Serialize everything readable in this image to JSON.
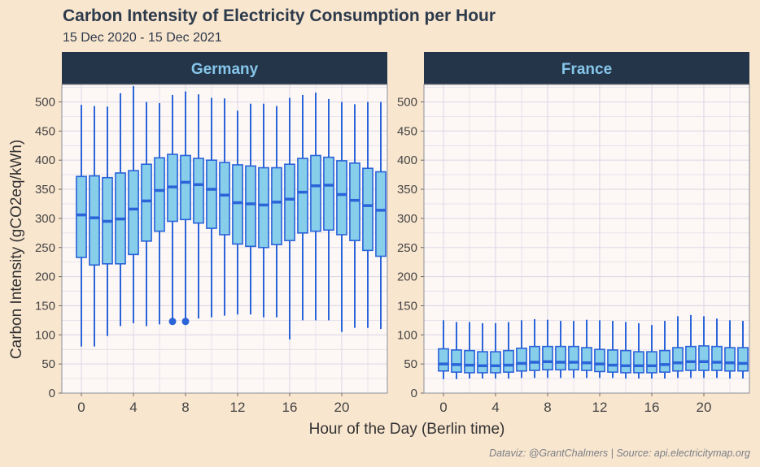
{
  "title": "Carbon Intensity of Electricity Consumption per Hour",
  "subtitle": "15 Dec 2020 - 15 Dec 2021",
  "caption": "Dataviz: @GrantChalmers | Source: api.electricitymap.org",
  "colors": {
    "background": "#f9e6cf",
    "panel": "#fdf8f6",
    "strip": "#253549",
    "strip_text": "#86c6ea",
    "box_fill": "#87ceeb",
    "box_line": "#2b63d9",
    "grid": "#dcd9e6"
  },
  "chart_data": {
    "type": "boxplot",
    "xlabel": "Hour of the Day (Berlin time)",
    "ylabel": "Carbon Intensity (gCO2eq/kWh)",
    "ylim": [
      0,
      530
    ],
    "xlim": [
      -1.5,
      23.5
    ],
    "y_ticks": [
      0,
      50,
      100,
      150,
      200,
      250,
      300,
      350,
      400,
      450,
      500
    ],
    "x_ticks": [
      0,
      4,
      8,
      12,
      16,
      20
    ],
    "grid": true,
    "panels": [
      {
        "name": "Germany",
        "hours": [
          0,
          1,
          2,
          3,
          4,
          5,
          6,
          7,
          8,
          9,
          10,
          11,
          12,
          13,
          14,
          15,
          16,
          17,
          18,
          19,
          20,
          21,
          22,
          23
        ],
        "lower_whisker": [
          80,
          80,
          98,
          115,
          120,
          115,
          118,
          122,
          125,
          128,
          130,
          133,
          135,
          135,
          130,
          130,
          92,
          125,
          125,
          125,
          105,
          112,
          112,
          110
        ],
        "q1": [
          233,
          220,
          222,
          222,
          238,
          261,
          278,
          295,
          298,
          292,
          283,
          272,
          256,
          252,
          250,
          255,
          262,
          275,
          278,
          280,
          272,
          262,
          245,
          235
        ],
        "median": [
          306,
          301,
          295,
          299,
          316,
          330,
          348,
          354,
          362,
          358,
          350,
          340,
          327,
          325,
          323,
          328,
          333,
          345,
          356,
          357,
          341,
          331,
          322,
          314
        ],
        "q3": [
          372,
          373,
          370,
          378,
          382,
          393,
          404,
          410,
          408,
          403,
          400,
          396,
          392,
          390,
          387,
          387,
          393,
          403,
          408,
          405,
          399,
          395,
          386,
          380
        ],
        "upper_whisker": [
          495,
          493,
          492,
          515,
          527,
          500,
          498,
          512,
          518,
          513,
          507,
          506,
          485,
          497,
          497,
          493,
          507,
          512,
          516,
          505,
          500,
          496,
          500,
          500
        ],
        "outliers": [
          {
            "hour": 7,
            "value": 123
          },
          {
            "hour": 8,
            "value": 123
          }
        ]
      },
      {
        "name": "France",
        "hours": [
          0,
          1,
          2,
          3,
          4,
          5,
          6,
          7,
          8,
          9,
          10,
          11,
          12,
          13,
          14,
          15,
          16,
          17,
          18,
          19,
          20,
          21,
          22,
          23
        ],
        "lower_whisker": [
          24,
          24,
          25,
          25,
          25,
          25,
          26,
          26,
          26,
          26,
          26,
          26,
          26,
          26,
          25,
          25,
          25,
          25,
          26,
          26,
          26,
          26,
          25,
          25
        ],
        "q1": [
          38,
          36,
          35,
          35,
          35,
          36,
          38,
          39,
          40,
          40,
          40,
          39,
          37,
          36,
          35,
          35,
          35,
          36,
          38,
          39,
          39,
          39,
          38,
          38
        ],
        "median": [
          50,
          49,
          48,
          47,
          47,
          48,
          51,
          53,
          54,
          53,
          53,
          52,
          50,
          48,
          47,
          47,
          47,
          49,
          52,
          54,
          54,
          53,
          52,
          51
        ],
        "q3": [
          76,
          74,
          73,
          71,
          71,
          73,
          77,
          80,
          80,
          80,
          80,
          78,
          75,
          74,
          73,
          71,
          71,
          73,
          78,
          80,
          81,
          80,
          78,
          78
        ],
        "upper_whisker": [
          125,
          122,
          122,
          120,
          120,
          122,
          125,
          127,
          126,
          124,
          124,
          126,
          125,
          124,
          122,
          120,
          117,
          124,
          132,
          134,
          132,
          128,
          125,
          124
        ],
        "outliers": []
      }
    ]
  }
}
